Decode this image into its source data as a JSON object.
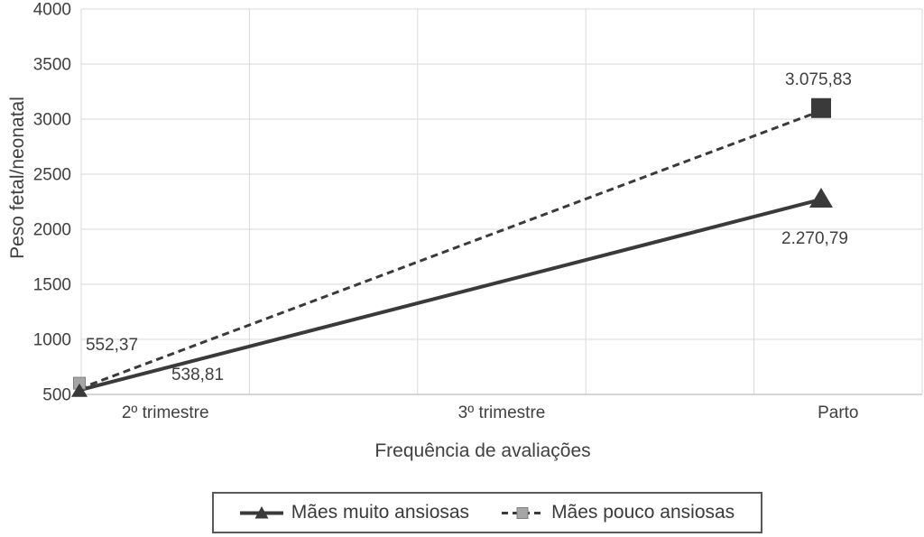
{
  "chart_data": {
    "type": "line",
    "title": "",
    "xlabel": "Frequência de avaliações",
    "ylabel": "Peso fetal/neonatal",
    "ylim": [
      500,
      4000
    ],
    "y_tick_step": 500,
    "y_ticks": [
      "500",
      "1000",
      "1500",
      "2000",
      "2500",
      "3000",
      "3500",
      "4000"
    ],
    "categories": [
      "2º trimestre",
      "3º trimestre",
      "Parto"
    ],
    "grid": "horizontal and vertical light-gray gridlines, plot framed",
    "legend_position": "bottom-center boxed",
    "series": [
      {
        "name": "Mães muito ansiosas",
        "line_style": "solid",
        "marker": "triangle",
        "color": "#3a3a3a",
        "points": [
          {
            "category": "2º trimestre",
            "value": 538.81,
            "label": "538,81"
          },
          {
            "category": "Parto",
            "value": 2270.79,
            "label": "2.270,79"
          }
        ]
      },
      {
        "name": "Mães pouco ansiosas",
        "line_style": "dashed",
        "marker": "square",
        "color": "#3a3a3a",
        "marker_fill_start": "#a6a6a6",
        "marker_fill_end": "#3a3a3a",
        "points": [
          {
            "category": "2º trimestre",
            "value": 552.37,
            "label": "552,37"
          },
          {
            "category": "Parto",
            "value": 3075.83,
            "label": "3.075,83"
          }
        ]
      }
    ],
    "colors": {
      "line": "#3a3a3a",
      "grid": "#d9d9d9",
      "axis": "#bdbdbd",
      "text": "#404040",
      "legend_border": "#595959",
      "background": "#ffffff"
    }
  }
}
